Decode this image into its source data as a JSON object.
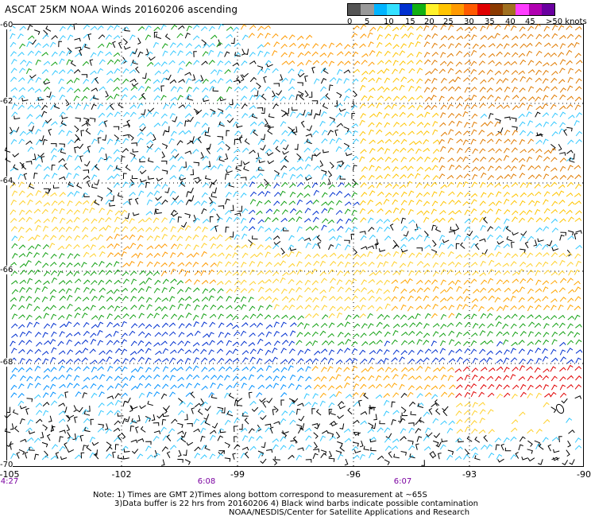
{
  "title": "ASCAT 25KM NOAA Winds 20160206 ascending",
  "legend": {
    "colors": [
      "#555555",
      "#9a9a9a",
      "#00b4ff",
      "#33e0ff",
      "#0030d0",
      "#12b012",
      "#fff22a",
      "#ffc400",
      "#ff9a00",
      "#ff5a00",
      "#e00000",
      "#8b3a00",
      "#a07020",
      "#ff3cff",
      "#b000b0",
      "#6a00a0"
    ],
    "labels": [
      "0",
      "5",
      "10",
      "15",
      "20",
      "25",
      "30",
      "35",
      "40",
      "45",
      ">50 knots"
    ]
  },
  "latitudes": [
    "-60",
    "-62",
    "-64",
    "-66",
    "-68",
    "-70"
  ],
  "longitudes": [
    "-105",
    "-102",
    "-99",
    "-96",
    "-93",
    "-90"
  ],
  "times": [
    "4:27",
    "6:08",
    "6:07"
  ],
  "notes": [
    "Note: 1) Times are GMT 2)Times along bottom correspond to measurement at ~65S",
    "3)Data buffer is 22 hrs from 20160206 4) Black wind barbs indicate possible contamination",
    "NOAA/NESDIS/Center for Satellite Applications and Research"
  ]
}
